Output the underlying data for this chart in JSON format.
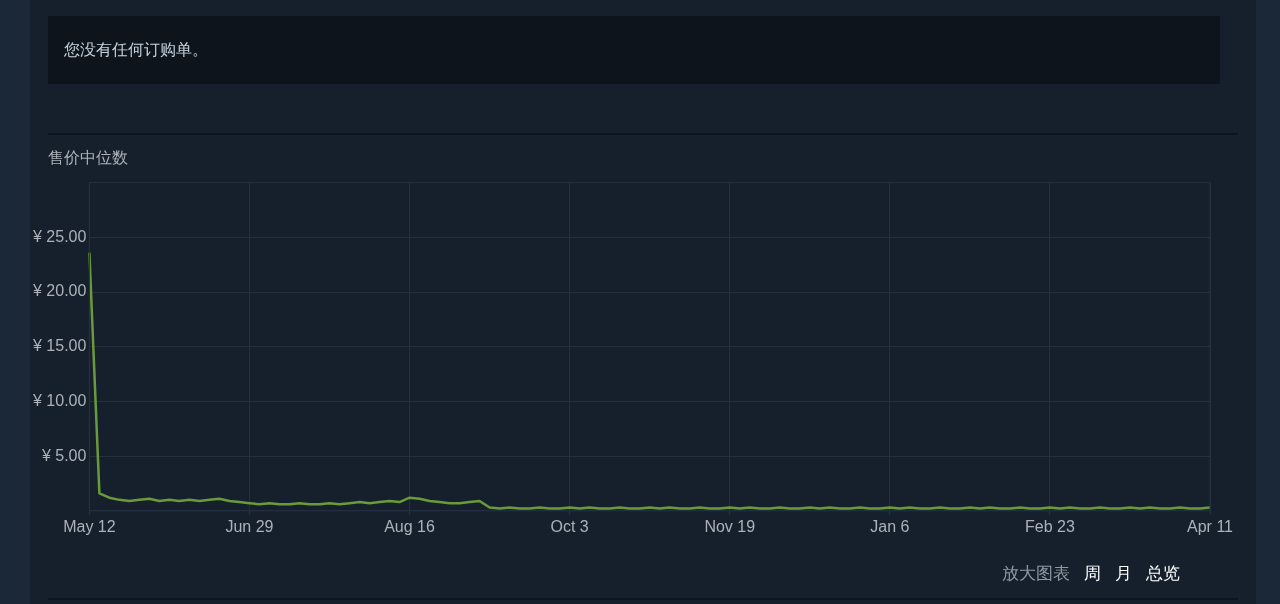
{
  "chart_data": {
    "type": "line",
    "title": "售价中位数",
    "categories": [
      "May 12",
      null,
      null,
      null,
      null,
      null,
      null,
      null,
      null,
      null,
      null,
      null,
      null,
      null,
      null,
      null,
      "Jun 29",
      null,
      null,
      null,
      null,
      null,
      null,
      null,
      null,
      null,
      null,
      null,
      null,
      null,
      null,
      null,
      "Aug 16",
      null,
      null,
      null,
      null,
      null,
      null,
      null,
      null,
      null,
      null,
      null,
      null,
      null,
      null,
      null,
      "Oct 3",
      null,
      null,
      null,
      null,
      null,
      null,
      null,
      null,
      null,
      null,
      null,
      null,
      null,
      null,
      null,
      "Nov 19",
      null,
      null,
      null,
      null,
      null,
      null,
      null,
      null,
      null,
      null,
      null,
      null,
      null,
      null,
      null,
      "Jan 6",
      null,
      null,
      null,
      null,
      null,
      null,
      null,
      null,
      null,
      null,
      null,
      null,
      null,
      null,
      null,
      "Feb 23",
      null,
      null,
      null,
      null,
      null,
      null,
      null,
      null,
      null,
      null,
      null,
      null,
      null,
      null,
      null,
      "Apr 11"
    ],
    "series": [
      {
        "color": "#6a9a3a",
        "values": [
          23.6,
          1.6,
          1.2,
          1.0,
          0.9,
          1.0,
          1.1,
          0.9,
          1.0,
          0.9,
          1.0,
          0.9,
          1.0,
          1.1,
          0.9,
          0.8,
          0.7,
          0.6,
          0.7,
          0.6,
          0.6,
          0.7,
          0.6,
          0.6,
          0.7,
          0.6,
          0.7,
          0.8,
          0.7,
          0.8,
          0.9,
          0.8,
          1.2,
          1.1,
          0.9,
          0.8,
          0.7,
          0.7,
          0.8,
          0.9,
          0.3,
          0.2,
          0.3,
          0.2,
          0.2,
          0.3,
          0.2,
          0.2,
          0.3,
          0.2,
          0.3,
          0.2,
          0.2,
          0.3,
          0.2,
          0.2,
          0.3,
          0.2,
          0.3,
          0.2,
          0.2,
          0.3,
          0.2,
          0.2,
          0.3,
          0.2,
          0.3,
          0.2,
          0.2,
          0.3,
          0.2,
          0.2,
          0.3,
          0.2,
          0.3,
          0.2,
          0.2,
          0.3,
          0.2,
          0.2,
          0.3,
          0.2,
          0.3,
          0.2,
          0.2,
          0.3,
          0.2,
          0.2,
          0.3,
          0.2,
          0.3,
          0.2,
          0.2,
          0.3,
          0.2,
          0.2,
          0.3,
          0.2,
          0.3,
          0.2,
          0.2,
          0.3,
          0.2,
          0.2,
          0.3,
          0.2,
          0.3,
          0.2,
          0.2,
          0.3,
          0.2,
          0.2,
          0.3
        ]
      }
    ],
    "ylim": [
      0,
      30
    ],
    "yticks": [
      {
        "value": 5,
        "label": "¥ 5.00"
      },
      {
        "value": 10,
        "label": "¥ 10.00"
      },
      {
        "value": 15,
        "label": "¥ 15.00"
      },
      {
        "value": 20,
        "label": "¥ 20.00"
      },
      {
        "value": 25,
        "label": "¥ 25.00"
      }
    ],
    "grid": true,
    "marker": "none",
    "annotations": [
      "您没有任何订购单。",
      "放大图表",
      "周",
      "月",
      "总览"
    ]
  }
}
